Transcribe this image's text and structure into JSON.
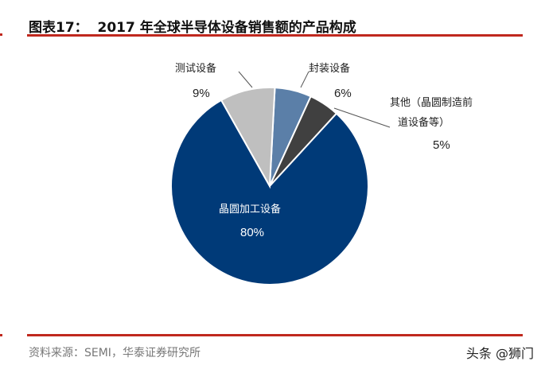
{
  "header": {
    "title": "图表17：  2017 年全球半导体设备销售额的产品构成"
  },
  "footer": {
    "source": "资料来源：SEMI，华泰证券研究所",
    "watermark": "头条 @狮门"
  },
  "chart_data": {
    "type": "pie",
    "title": "图表17：  2017 年全球半导体设备销售额的产品构成",
    "slices": [
      {
        "name": "封装设备",
        "value": 6,
        "label": "6%",
        "color": "#5b7fa8"
      },
      {
        "name": "其他（晶圆制造前道设备等）",
        "name_line1": "其他（晶圆制造前",
        "name_line2": "道设备等）",
        "value": 5,
        "label": "5%",
        "color": "#404040"
      },
      {
        "name": "晶圆加工设备",
        "value": 80,
        "label": "80%",
        "color": "#003a78"
      },
      {
        "name": "测试设备",
        "value": 9,
        "label": "9%",
        "color": "#bfbfbf"
      }
    ]
  }
}
